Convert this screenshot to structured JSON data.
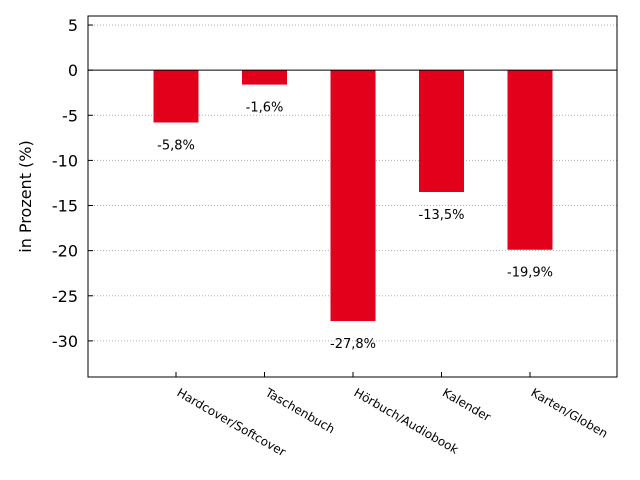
{
  "chart_data": {
    "type": "bar",
    "categories": [
      "Hardcover/Softcover",
      "Taschenbuch",
      "Hörbuch/Audiobook",
      "Kalender",
      "Karten/Globen"
    ],
    "values": [
      -5.8,
      -1.6,
      -27.8,
      -13.5,
      -19.9
    ],
    "data_labels": [
      "-5,8%",
      "-1,6%",
      "-27,8%",
      "-13,5%",
      "-19,9%"
    ],
    "title": "",
    "xlabel": "",
    "ylabel": "in Prozent (%)",
    "ylim": [
      -34,
      6
    ],
    "yticks": [
      5,
      0,
      -5,
      -10,
      -15,
      -20,
      -25,
      -30
    ],
    "ytick_labels": [
      "5",
      "0",
      "-5",
      "-10",
      "-15",
      "-20",
      "-25",
      "-30"
    ],
    "grid": "horizontal dotted",
    "zero_line": true,
    "bar_color": "#e2001a"
  }
}
